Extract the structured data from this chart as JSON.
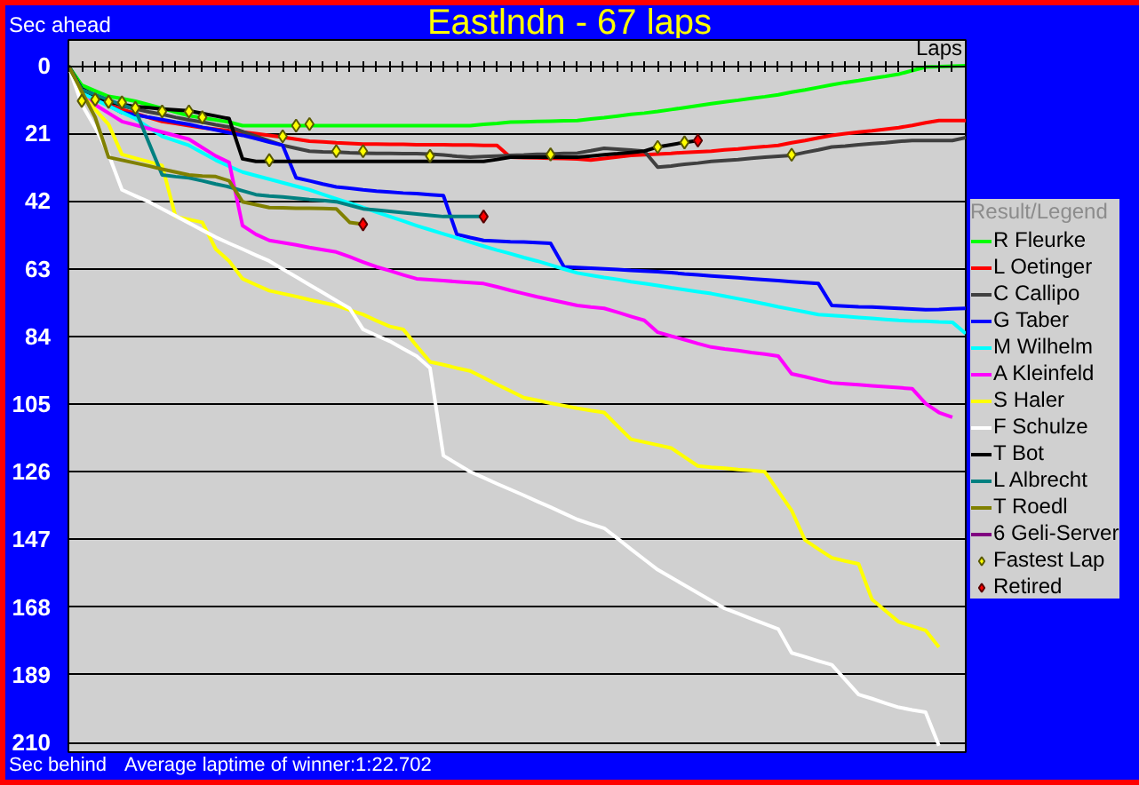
{
  "chart_data": {
    "type": "line",
    "title": "Eastlndn - 67 laps",
    "xlabel": "Laps",
    "ylabel": "Sec ahead",
    "annotations": [
      "Sec behind",
      "Average laptime of winner:1:22.702"
    ],
    "legend_title": "Result/Legend",
    "legend": "right",
    "grid": "y",
    "tick_labels": "y",
    "categories": [
      null,
      null,
      null,
      null,
      null,
      null,
      null,
      null,
      null,
      null,
      null,
      null,
      null,
      null,
      null,
      null,
      null,
      null,
      null,
      null,
      null,
      null,
      null,
      null,
      null,
      null,
      null,
      null,
      null,
      null,
      null,
      null,
      null,
      null,
      null,
      null,
      null,
      null,
      null,
      null,
      null,
      null,
      null,
      null,
      null,
      null,
      null,
      null,
      null,
      null,
      null,
      null,
      null,
      null,
      null,
      null,
      null,
      null,
      null,
      null,
      null,
      null,
      null,
      null,
      null,
      null,
      null,
      null
    ],
    "ylim": [
      213,
      -8
    ],
    "yticks": [
      0,
      21,
      42,
      63,
      84,
      105,
      126,
      147,
      168,
      189,
      210
    ],
    "series": [
      {
        "name": "R Fleurke",
        "color": "#00ff00",
        "values": [
          0,
          6,
          7.8,
          9.5,
          10.2,
          11,
          12.1,
          13.2,
          14.4,
          15.5,
          16.2,
          16.8,
          17.5,
          18.6,
          18.6,
          18.6,
          18.6,
          18.6,
          18.6,
          18.6,
          18.6,
          18.6,
          18.6,
          18.6,
          18.6,
          18.6,
          18.6,
          18.6,
          18.6,
          18.6,
          18.6,
          18.2,
          17.9,
          17.5,
          17.4,
          17.3,
          17.2,
          17.1,
          17,
          16.5,
          16.1,
          15.6,
          15.1,
          14.7,
          14.2,
          13.6,
          13,
          12.4,
          11.8,
          11.2,
          10.7,
          10.1,
          9.6,
          9,
          8.2,
          7.5,
          6.7,
          5.9,
          5.2,
          4.6,
          3.9,
          3.3,
          2.6,
          1.5,
          0.4,
          0.3,
          0.1,
          0
        ]
      },
      {
        "name": "L Oetinger",
        "color": "#ff0000",
        "values": [
          null,
          null,
          10.5,
          12,
          13.6,
          14.8,
          16.1,
          17.3,
          17.9,
          18.6,
          19.2,
          19.7,
          20.2,
          20.6,
          21.1,
          21.6,
          22.2,
          22.8,
          23.4,
          23.6,
          23.9,
          24.1,
          24.3,
          24.3,
          24.4,
          24.4,
          24.5,
          24.5,
          24.5,
          24.6,
          24.6,
          24.7,
          24.7,
          28.4,
          28.5,
          28.6,
          28.7,
          28.8,
          28.9,
          29.3,
          28.8,
          28.3,
          27.8,
          27.6,
          27.4,
          27.2,
          26.9,
          26.7,
          26.5,
          26.1,
          25.8,
          25.4,
          25.1,
          24.7,
          23.9,
          23.2,
          22.4,
          21.6,
          21.1,
          20.6,
          20.2,
          19.7,
          19.2,
          18.5,
          17.7,
          17,
          17,
          17
        ]
      },
      {
        "name": "C Callipo",
        "color": "#404040",
        "values": [
          0,
          7.5,
          9.2,
          10.8,
          12.5,
          13.4,
          14.3,
          15.1,
          16,
          16.8,
          17.5,
          18.3,
          19,
          20.4,
          21.9,
          23.3,
          24.7,
          25.6,
          26.5,
          26.7,
          26.8,
          27,
          27.1,
          27.2,
          27.2,
          27.3,
          27.3,
          27.4,
          27.7,
          28.1,
          28.4,
          28.2,
          28,
          27.8,
          27.7,
          27.5,
          27.4,
          27.2,
          27.1,
          26.4,
          25.6,
          25.9,
          26.2,
          26.5,
          31.5,
          31.1,
          30.6,
          30.2,
          29.7,
          29.4,
          29.1,
          28.7,
          28.4,
          28.1,
          27.8,
          26.9,
          26.1,
          25.2,
          24.9,
          24.5,
          24.2,
          23.9,
          23.5,
          23.2,
          23.2,
          23.2,
          23.2,
          22.3
        ]
      },
      {
        "name": "G Taber",
        "color": "#0000ff",
        "values": [
          0,
          8,
          10.2,
          12.3,
          14.5,
          15.2,
          16,
          16.7,
          17.5,
          18.2,
          19.1,
          19.9,
          20.8,
          21.6,
          22.6,
          23.7,
          24.7,
          34.8,
          35.7,
          36.7,
          37.6,
          38,
          38.5,
          38.9,
          39.2,
          39.5,
          39.7,
          40,
          40.3,
          52.3,
          53.3,
          54.2,
          54.4,
          54.6,
          54.7,
          54.9,
          55.1,
          62.4,
          62.6,
          62.8,
          63,
          63.2,
          63.5,
          63.7,
          63.9,
          64.2,
          64.6,
          64.9,
          65.2,
          65.5,
          65.8,
          66.1,
          66.4,
          66.7,
          67,
          67.3,
          67.6,
          74.4,
          74.6,
          74.8,
          74.9,
          75.1,
          75.3,
          75.5,
          75.7,
          75.6,
          75.4,
          75.3
        ]
      },
      {
        "name": "M Wilhelm",
        "color": "#00ffff",
        "values": [
          0,
          8.5,
          10.5,
          12.5,
          14.5,
          16.4,
          19.2,
          21.9,
          23.3,
          24.7,
          27,
          29.3,
          31.2,
          33,
          34.1,
          35.2,
          36.3,
          37.4,
          38.5,
          39.9,
          41.3,
          42.6,
          44,
          45.4,
          46.8,
          48.2,
          49.6,
          50.9,
          52.2,
          53.4,
          54.7,
          56,
          57.2,
          58.3,
          59.5,
          60.6,
          61.8,
          63.1,
          64.3,
          65,
          65.7,
          66.3,
          67,
          67.6,
          68.2,
          68.9,
          69.5,
          70.1,
          70.7,
          71.5,
          72.3,
          73.1,
          73.9,
          74.8,
          75.6,
          76.4,
          77.2,
          77.5,
          77.8,
          78.1,
          78.4,
          78.7,
          79,
          79.2,
          79.3,
          79.5,
          79.6,
          83.1
        ]
      },
      {
        "name": "A Kleinfeld",
        "color": "#ff00ff",
        "values": [
          0,
          9.5,
          12.1,
          14.7,
          17.3,
          18.4,
          19.5,
          20.6,
          21.7,
          22.8,
          25.4,
          28,
          30,
          49.6,
          52.3,
          54.2,
          54.9,
          55.6,
          56.4,
          57.1,
          57.8,
          59.3,
          60.9,
          62.4,
          63.6,
          64.9,
          66.1,
          66.4,
          66.7,
          67,
          67.3,
          67.6,
          68.6,
          69.7,
          70.7,
          71.7,
          72.6,
          73.5,
          74.4,
          74.9,
          75.3,
          76.5,
          77.8,
          79,
          82.7,
          83.9,
          85,
          86.2,
          87.3,
          87.9,
          88.4,
          89,
          89.5,
          90.1,
          95.6,
          96.5,
          97.5,
          98.4,
          98.7,
          99,
          99.3,
          99.6,
          99.9,
          100.2,
          104.8,
          107.6,
          109.1,
          null
        ]
      },
      {
        "name": "S Haler",
        "color": "#ffff00",
        "values": [
          0,
          9,
          13.6,
          18.2,
          27.5,
          28.7,
          29.8,
          31,
          46.8,
          47.7,
          48.6,
          56.9,
          60.6,
          66.1,
          68,
          69.8,
          70.7,
          71.6,
          72.6,
          73.5,
          74.4,
          75.8,
          77.2,
          79.1,
          80.9,
          81.8,
          86.9,
          91.9,
          92.8,
          93.8,
          94.7,
          96.8,
          98.9,
          100.9,
          103,
          103.8,
          104.7,
          105.5,
          106.3,
          107,
          107.6,
          111.8,
          115.9,
          116.8,
          117.7,
          118.6,
          121.4,
          124.2,
          124.6,
          124.9,
          125.3,
          125.6,
          126,
          132,
          138,
          147.2,
          150,
          152.7,
          153.7,
          154.6,
          165.6,
          169.1,
          172.6,
          173.9,
          175.2,
          180.4,
          null,
          null
        ]
      },
      {
        "name": "F Schulze",
        "color": "#ffffff",
        "values": [
          0,
          12,
          19.2,
          27.5,
          38.5,
          40.4,
          42.2,
          44.4,
          46.6,
          48.8,
          51,
          53.2,
          55.1,
          56.9,
          58.8,
          60.6,
          63.1,
          65.5,
          68,
          70.4,
          72.9,
          75.3,
          81.8,
          83.7,
          85.5,
          87.8,
          90.1,
          93.8,
          121,
          123.5,
          126,
          127.8,
          129.7,
          131.5,
          133.3,
          135.2,
          137,
          138.9,
          140.8,
          142.2,
          143.5,
          146.7,
          150,
          153.2,
          156.4,
          158.8,
          161.2,
          163.6,
          166,
          168.4,
          170,
          171.6,
          173.2,
          174.8,
          182.2,
          183.4,
          184.7,
          185.9,
          190.5,
          195.1,
          196.4,
          197.8,
          199.1,
          199.9,
          200.6,
          211,
          null,
          null
        ]
      },
      {
        "name": "T Bot",
        "color": "#000000",
        "values": [
          0,
          7.2,
          9.2,
          11.2,
          12,
          12.7,
          13,
          13.4,
          13.7,
          14,
          14.8,
          15.6,
          16.4,
          28.9,
          29.7,
          29.7,
          29.7,
          29.7,
          29.7,
          29.7,
          29.7,
          29.7,
          29.7,
          29.7,
          29.7,
          29.7,
          29.7,
          29.7,
          29.7,
          29.7,
          29.7,
          29.7,
          29.1,
          28.4,
          28.4,
          28.4,
          28.4,
          28.4,
          28.4,
          28,
          27.6,
          27.3,
          26.9,
          26.5,
          25.2,
          24.5,
          23.8,
          23.2,
          null,
          null,
          null,
          null,
          null,
          null,
          null,
          null,
          null,
          null,
          null,
          null,
          null,
          null,
          null,
          null,
          null,
          null,
          null,
          null
        ]
      },
      {
        "name": "L Albrecht",
        "color": "#008080",
        "values": [
          0,
          7.5,
          9,
          10.6,
          12.1,
          13.6,
          23.8,
          33.9,
          34.4,
          34.8,
          35.7,
          36.7,
          37.6,
          38.8,
          40,
          40.4,
          40.7,
          41.1,
          41.5,
          41.8,
          42.2,
          43.3,
          44.4,
          44.8,
          45.2,
          45.6,
          46,
          46.4,
          46.8,
          46.8,
          46.8,
          46.8,
          null,
          null,
          null,
          null,
          null,
          null,
          null,
          null,
          null,
          null,
          null,
          null,
          null,
          null,
          null,
          null,
          null,
          null,
          null,
          null,
          null,
          null,
          null,
          null,
          null,
          null,
          null,
          null,
          null,
          null,
          null,
          null,
          null,
          null,
          null,
          null
        ]
      },
      {
        "name": "T Roedl",
        "color": "#808000",
        "values": [
          0,
          8,
          16,
          28.4,
          29.3,
          30.2,
          31.1,
          32.1,
          33,
          33.9,
          34.2,
          34.4,
          35.7,
          42.2,
          43.1,
          44,
          44.1,
          44.2,
          44.2,
          44.3,
          44.4,
          48.6,
          49.2,
          null,
          null,
          null,
          null,
          null,
          null,
          null,
          null,
          null,
          null,
          null,
          null,
          null,
          null,
          null,
          null,
          null,
          null,
          null,
          null,
          null,
          null,
          null,
          null,
          null,
          null,
          null,
          null,
          null,
          null,
          null,
          null,
          null,
          null,
          null,
          null,
          null,
          null,
          null,
          null,
          null,
          null,
          null,
          null,
          null
        ]
      },
      {
        "name": "6 Geli-Server",
        "color": "#800080",
        "values": [
          null,
          null,
          null,
          null,
          null,
          null,
          null,
          null,
          null,
          null,
          null,
          null,
          null,
          null,
          null,
          null,
          null,
          null,
          null,
          null,
          null,
          null,
          null,
          null,
          null,
          null,
          null,
          null,
          null,
          null,
          null,
          null,
          null,
          null,
          null,
          null,
          null,
          null,
          null,
          null,
          null,
          null,
          null,
          null,
          null,
          null,
          null,
          null,
          null,
          null,
          null,
          null,
          null,
          null,
          null,
          null,
          null,
          null,
          null,
          null,
          null,
          null,
          null,
          null,
          null,
          null,
          null,
          null
        ]
      },
      {
        "name": "Fastest Lap",
        "type": "scatter",
        "marker": "diamond",
        "color": "#ffff00",
        "values": [
          null,
          10.9,
          10.5,
          11.2,
          11.4,
          13.1,
          null,
          14.2,
          null,
          14.2,
          16,
          null,
          null,
          null,
          null,
          29.3,
          21.9,
          18.6,
          18.1,
          null,
          26.5,
          null,
          26.5,
          null,
          null,
          null,
          null,
          28,
          null,
          null,
          null,
          null,
          null,
          null,
          null,
          null,
          27.5,
          null,
          null,
          null,
          null,
          null,
          null,
          null,
          25.2,
          null,
          23.8,
          null,
          null,
          null,
          null,
          null,
          null,
          null,
          27.6,
          null,
          null,
          null,
          null,
          null,
          null,
          null,
          null,
          null,
          null,
          null,
          null,
          null
        ]
      },
      {
        "name": "Retired",
        "type": "scatter",
        "marker": "diamond",
        "color": "#ff0000",
        "values": [
          null,
          null,
          null,
          null,
          null,
          null,
          null,
          null,
          null,
          null,
          null,
          null,
          null,
          null,
          null,
          null,
          null,
          null,
          null,
          null,
          null,
          null,
          49.2,
          null,
          null,
          null,
          null,
          null,
          null,
          null,
          null,
          46.8,
          null,
          null,
          null,
          null,
          null,
          null,
          null,
          null,
          null,
          null,
          null,
          null,
          null,
          null,
          null,
          23.2,
          null,
          null,
          null,
          null,
          null,
          null,
          null,
          null,
          null,
          null,
          null,
          null,
          null,
          null,
          null,
          null,
          null,
          null,
          null,
          null
        ]
      }
    ]
  }
}
